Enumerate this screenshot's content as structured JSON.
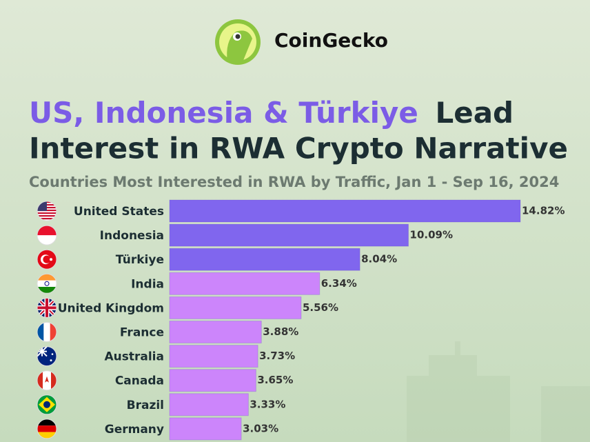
{
  "brand": "CoinGecko",
  "chart_data": {
    "type": "bar",
    "orientation": "horizontal",
    "title_highlight": "US, Indonesia & Türkiye",
    "title_line1": "Lead",
    "title_line2": "Interest in RWA Crypto Narrative",
    "subtitle": "Countries Most Interested in RWA by Traffic, Jan 1 - Sep 16, 2024",
    "categories": [
      "United States",
      "Indonesia",
      "Türkiye",
      "India",
      "United Kingdom",
      "France",
      "Australia",
      "Canada",
      "Brazil",
      "Germany"
    ],
    "values": [
      14.82,
      10.09,
      8.04,
      6.34,
      5.56,
      3.88,
      3.73,
      3.65,
      3.33,
      3.03
    ],
    "value_labels": [
      "14.82%",
      "10.09%",
      "8.04%",
      "6.34%",
      "5.56%",
      "3.88%",
      "3.73%",
      "3.65%",
      "3.33%",
      "3.03%"
    ],
    "colors": [
      "#8066ee",
      "#8066ee",
      "#8066ee",
      "#cc85fb",
      "#cc85fb",
      "#cc85fb",
      "#cc85fb",
      "#cc85fb",
      "#cc85fb",
      "#cc85fb"
    ]
  }
}
